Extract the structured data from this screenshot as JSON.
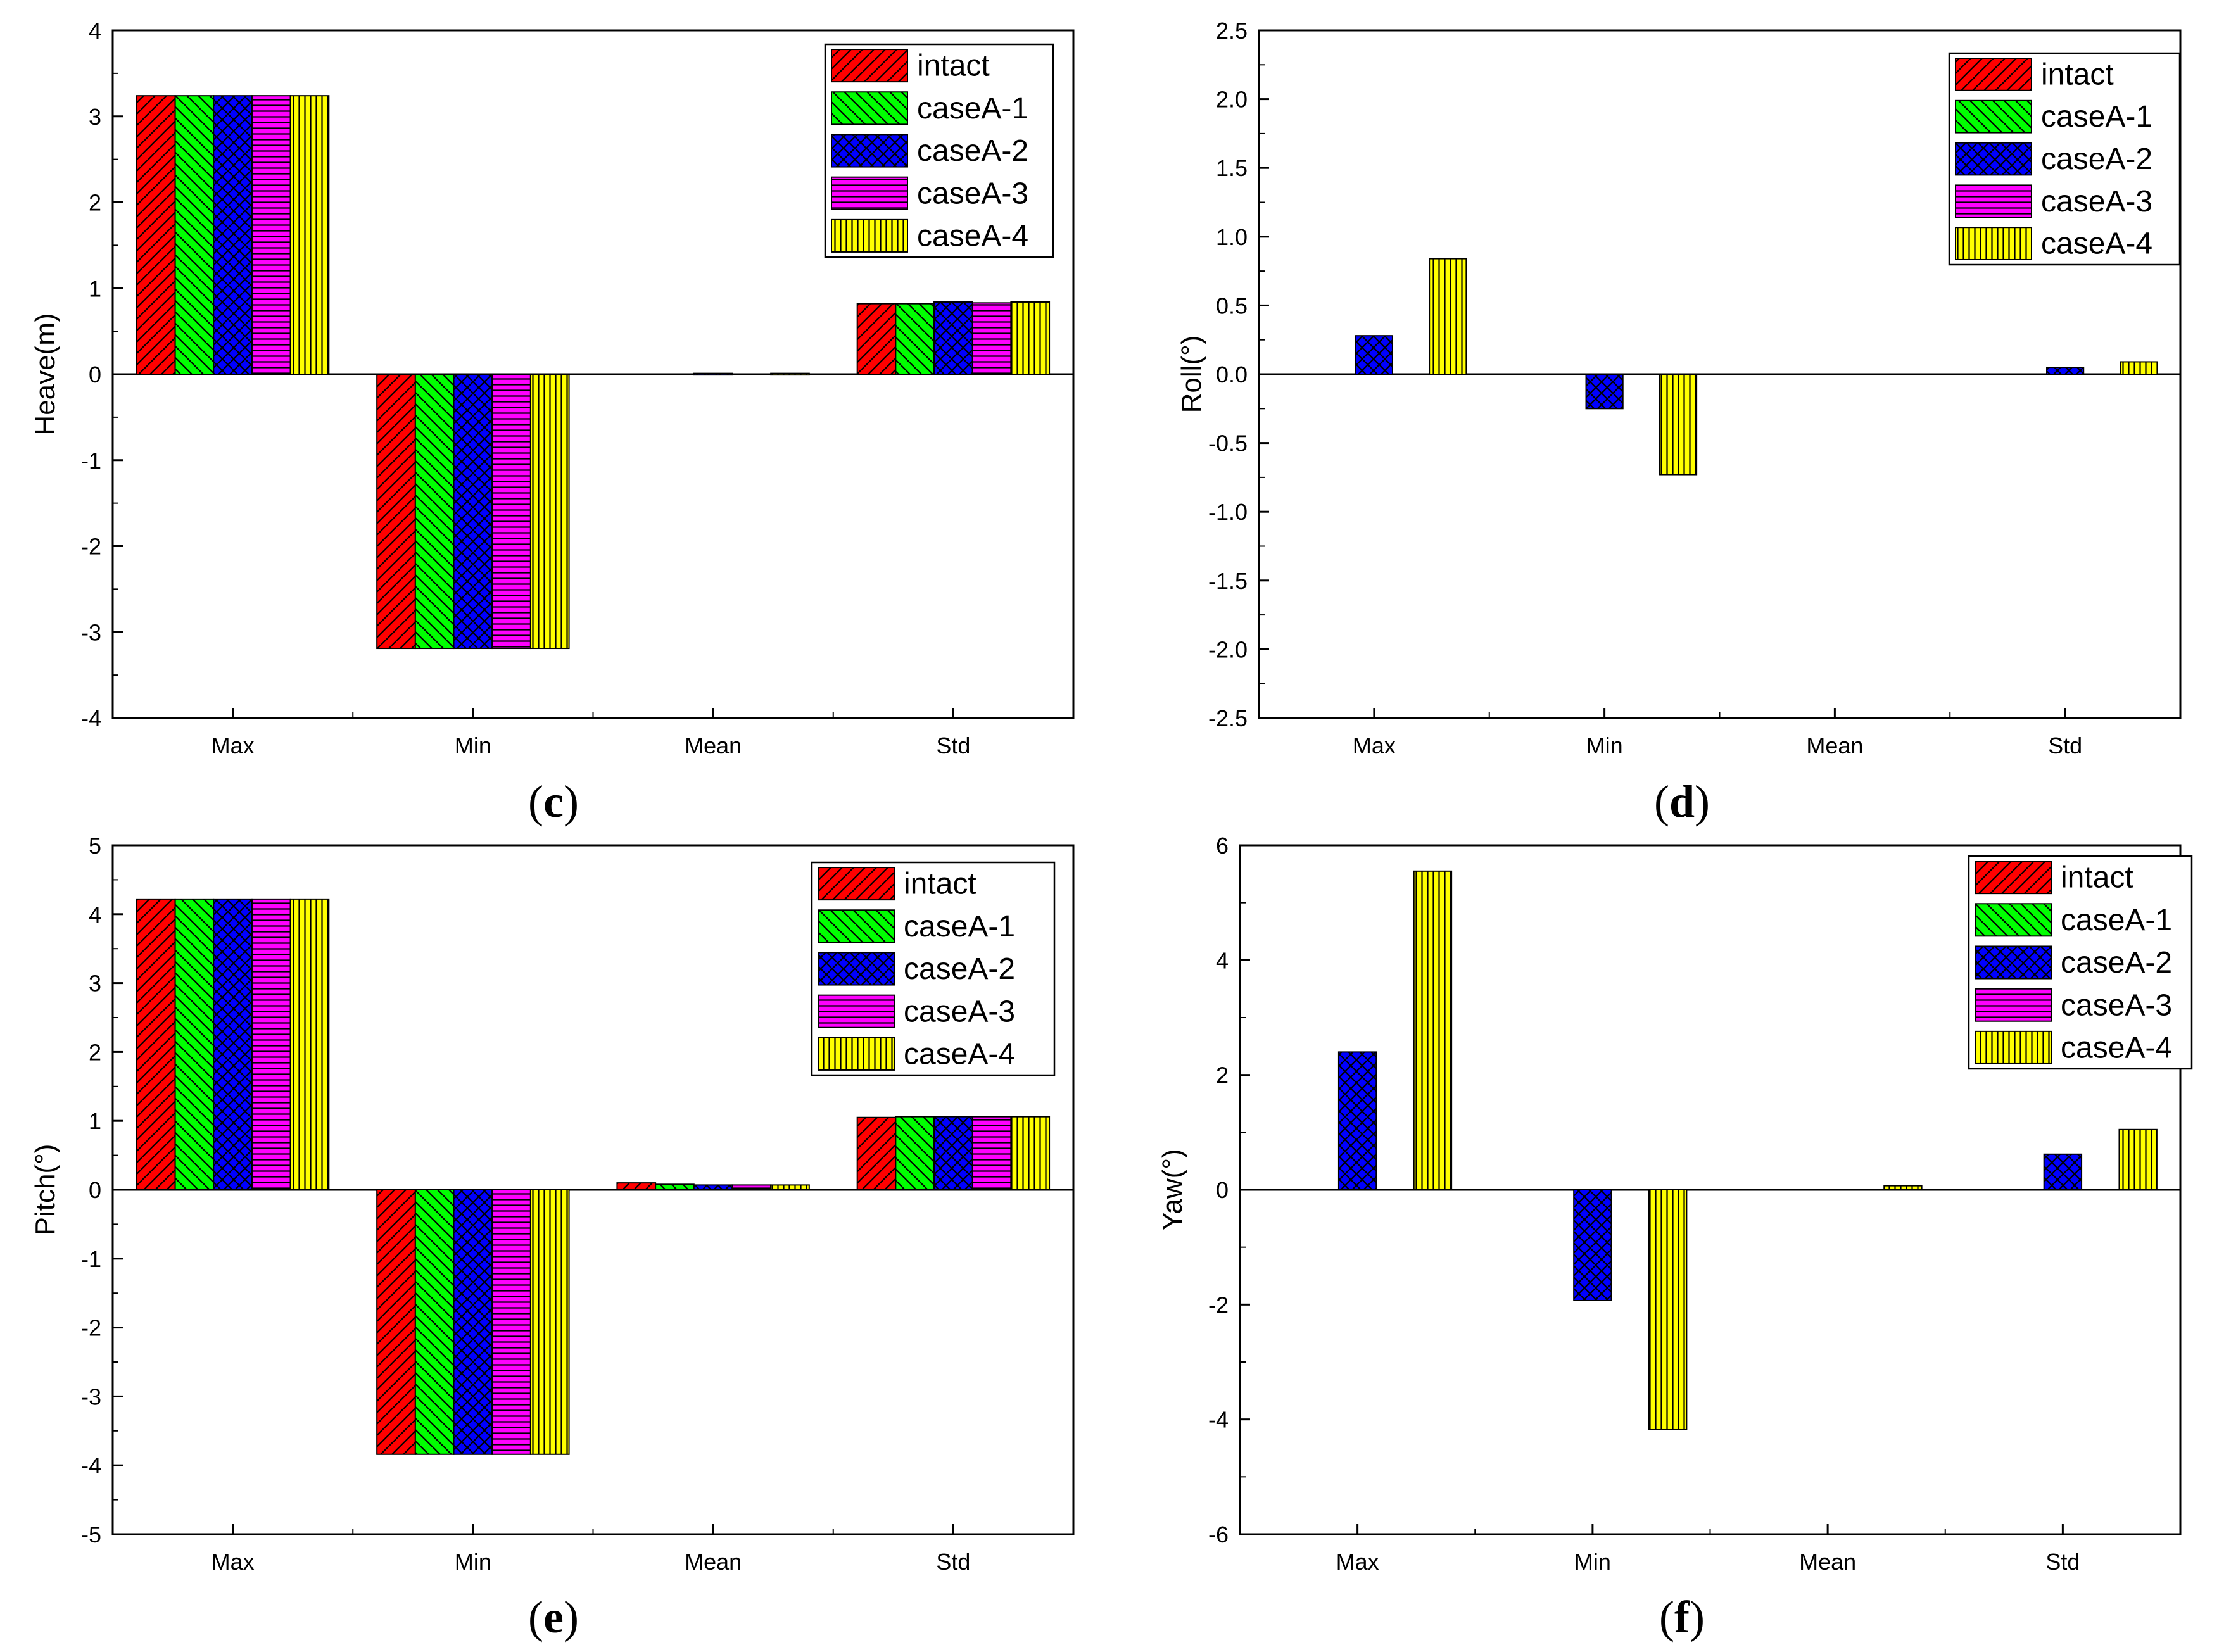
{
  "figure": {
    "series_names": [
      "intact",
      "caseA-1",
      "caseA-2",
      "caseA-3",
      "caseA-4"
    ],
    "series_colors": [
      "#ff0000",
      "#00ff00",
      "#0000ff",
      "#ff00ff",
      "#ffff00"
    ],
    "series_patterns": [
      "diag-right",
      "diag-left",
      "crosshatch",
      "horizontal",
      "vertical"
    ]
  },
  "chart_data": [
    {
      "id": "c",
      "type": "bar",
      "panel_label": "c",
      "title": "",
      "xlabel": "",
      "ylabel": "Heave(m)",
      "categories": [
        "Max",
        "Min",
        "Mean",
        "Std"
      ],
      "ylim": [
        -4,
        4
      ],
      "yticks": [
        -4,
        -3,
        -2,
        -1,
        0,
        1,
        2,
        3,
        4
      ],
      "ytick_labels": [
        "-4",
        "-3",
        "-2",
        "-1",
        "0",
        "1",
        "2",
        "3",
        "4"
      ],
      "legend_position": "top-right",
      "series": [
        {
          "name": "intact",
          "values": [
            3.24,
            -3.19,
            0.0,
            0.82
          ]
        },
        {
          "name": "caseA-1",
          "values": [
            3.24,
            -3.19,
            0.0,
            0.82
          ]
        },
        {
          "name": "caseA-2",
          "values": [
            3.24,
            -3.19,
            0.01,
            0.84
          ]
        },
        {
          "name": "caseA-3",
          "values": [
            3.24,
            -3.19,
            0.0,
            0.83
          ]
        },
        {
          "name": "caseA-4",
          "values": [
            3.24,
            -3.19,
            0.01,
            0.84
          ]
        }
      ]
    },
    {
      "id": "d",
      "type": "bar",
      "panel_label": "d",
      "title": "",
      "xlabel": "",
      "ylabel": "Roll(°)",
      "categories": [
        "Max",
        "Min",
        "Mean",
        "Std"
      ],
      "ylim": [
        -2.5,
        2.5
      ],
      "yticks": [
        -2.5,
        -2.0,
        -1.5,
        -1.0,
        -0.5,
        0.0,
        0.5,
        1.0,
        1.5,
        2.0,
        2.5
      ],
      "ytick_labels": [
        "-2.5",
        "-2.0",
        "-1.5",
        "-1.0",
        "-0.5",
        "0.0",
        "0.5",
        "1.0",
        "1.5",
        "2.0",
        "2.5"
      ],
      "legend_position": "top-right",
      "series": [
        {
          "name": "intact",
          "values": [
            0.0,
            0.0,
            0.0,
            0.0
          ]
        },
        {
          "name": "caseA-1",
          "values": [
            0.0,
            0.0,
            0.0,
            0.0
          ]
        },
        {
          "name": "caseA-2",
          "values": [
            0.28,
            -0.25,
            0.0,
            0.05
          ]
        },
        {
          "name": "caseA-3",
          "values": [
            0.0,
            0.0,
            0.0,
            0.0
          ]
        },
        {
          "name": "caseA-4",
          "values": [
            0.84,
            -0.73,
            0.0,
            0.09
          ]
        }
      ]
    },
    {
      "id": "e",
      "type": "bar",
      "panel_label": "e",
      "title": "",
      "xlabel": "",
      "ylabel": "Pitch(°)",
      "categories": [
        "Max",
        "Min",
        "Mean",
        "Std"
      ],
      "ylim": [
        -5,
        5
      ],
      "yticks": [
        -5,
        -4,
        -3,
        -2,
        -1,
        0,
        1,
        2,
        3,
        4,
        5
      ],
      "ytick_labels": [
        "-5",
        "-4",
        "-3",
        "-2",
        "-1",
        "0",
        "1",
        "2",
        "3",
        "4",
        "5"
      ],
      "legend_position": "top-right",
      "series": [
        {
          "name": "intact",
          "values": [
            4.22,
            -3.84,
            0.1,
            1.05
          ]
        },
        {
          "name": "caseA-1",
          "values": [
            4.22,
            -3.84,
            0.08,
            1.06
          ]
        },
        {
          "name": "caseA-2",
          "values": [
            4.22,
            -3.84,
            0.07,
            1.06
          ]
        },
        {
          "name": "caseA-3",
          "values": [
            4.22,
            -3.84,
            0.07,
            1.06
          ]
        },
        {
          "name": "caseA-4",
          "values": [
            4.22,
            -3.84,
            0.07,
            1.06
          ]
        }
      ]
    },
    {
      "id": "f",
      "type": "bar",
      "panel_label": "f",
      "title": "",
      "xlabel": "",
      "ylabel": "Yaw(°)",
      "categories": [
        "Max",
        "Min",
        "Mean",
        "Std"
      ],
      "ylim": [
        -6,
        6
      ],
      "yticks": [
        -6,
        -4,
        -2,
        0,
        2,
        4,
        6
      ],
      "ytick_labels": [
        "-6",
        "-4",
        "-2",
        "0",
        "2",
        "4",
        "6"
      ],
      "legend_position": "top-right",
      "series": [
        {
          "name": "intact",
          "values": [
            0.0,
            0.0,
            0.0,
            0.0
          ]
        },
        {
          "name": "caseA-1",
          "values": [
            0.0,
            0.0,
            0.0,
            0.0
          ]
        },
        {
          "name": "caseA-2",
          "values": [
            2.4,
            -1.93,
            0.0,
            0.62
          ]
        },
        {
          "name": "caseA-3",
          "values": [
            0.0,
            0.0,
            0.0,
            0.0
          ]
        },
        {
          "name": "caseA-4",
          "values": [
            5.55,
            -4.18,
            0.07,
            1.05
          ]
        }
      ]
    }
  ]
}
